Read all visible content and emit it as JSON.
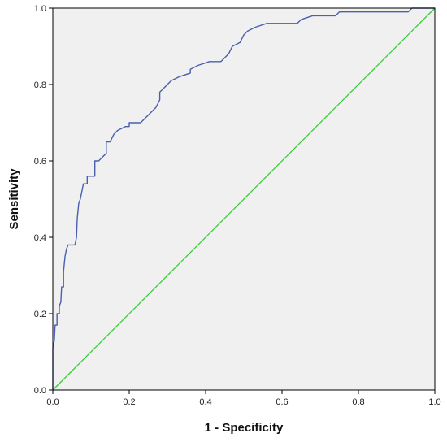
{
  "colors": {
    "plot_background": "#f0f0f0",
    "frame": "#000000",
    "roc_line": "#4a5fae",
    "reference_line": "#3ec63e"
  },
  "chart_data": {
    "type": "line",
    "title": "",
    "xlabel": "1 - Specificity",
    "ylabel": "Sensitivity",
    "xlim": [
      0,
      1
    ],
    "ylim": [
      0,
      1
    ],
    "x_ticks": [
      "0.0",
      "0.2",
      "0.4",
      "0.6",
      "0.8",
      "1.0"
    ],
    "y_ticks": [
      "0.0",
      "0.2",
      "0.4",
      "0.6",
      "0.8",
      "1.0"
    ],
    "grid": false,
    "legend": "none",
    "series": [
      {
        "key": "roc",
        "step": true,
        "points": [
          [
            0.0,
            0.0
          ],
          [
            0.0,
            0.11
          ],
          [
            0.004,
            0.13
          ],
          [
            0.006,
            0.17
          ],
          [
            0.011,
            0.17
          ],
          [
            0.011,
            0.2
          ],
          [
            0.017,
            0.2
          ],
          [
            0.017,
            0.22
          ],
          [
            0.021,
            0.23
          ],
          [
            0.023,
            0.27
          ],
          [
            0.028,
            0.27
          ],
          [
            0.028,
            0.31
          ],
          [
            0.032,
            0.35
          ],
          [
            0.036,
            0.37
          ],
          [
            0.04,
            0.38
          ],
          [
            0.058,
            0.38
          ],
          [
            0.062,
            0.4
          ],
          [
            0.064,
            0.45
          ],
          [
            0.068,
            0.49
          ],
          [
            0.072,
            0.5
          ],
          [
            0.076,
            0.52
          ],
          [
            0.08,
            0.54
          ],
          [
            0.09,
            0.54
          ],
          [
            0.09,
            0.56
          ],
          [
            0.11,
            0.56
          ],
          [
            0.11,
            0.6
          ],
          [
            0.12,
            0.6
          ],
          [
            0.13,
            0.61
          ],
          [
            0.14,
            0.62
          ],
          [
            0.14,
            0.65
          ],
          [
            0.15,
            0.65
          ],
          [
            0.16,
            0.67
          ],
          [
            0.17,
            0.68
          ],
          [
            0.19,
            0.69
          ],
          [
            0.2,
            0.69
          ],
          [
            0.2,
            0.7
          ],
          [
            0.23,
            0.7
          ],
          [
            0.24,
            0.71
          ],
          [
            0.25,
            0.72
          ],
          [
            0.26,
            0.73
          ],
          [
            0.27,
            0.74
          ],
          [
            0.28,
            0.76
          ],
          [
            0.28,
            0.78
          ],
          [
            0.29,
            0.79
          ],
          [
            0.3,
            0.8
          ],
          [
            0.31,
            0.81
          ],
          [
            0.33,
            0.82
          ],
          [
            0.36,
            0.83
          ],
          [
            0.36,
            0.84
          ],
          [
            0.38,
            0.85
          ],
          [
            0.41,
            0.86
          ],
          [
            0.44,
            0.86
          ],
          [
            0.45,
            0.87
          ],
          [
            0.46,
            0.88
          ],
          [
            0.47,
            0.9
          ],
          [
            0.49,
            0.91
          ],
          [
            0.5,
            0.93
          ],
          [
            0.51,
            0.94
          ],
          [
            0.53,
            0.95
          ],
          [
            0.56,
            0.96
          ],
          [
            0.64,
            0.96
          ],
          [
            0.65,
            0.97
          ],
          [
            0.68,
            0.98
          ],
          [
            0.74,
            0.98
          ],
          [
            0.75,
            0.99
          ],
          [
            0.93,
            0.99
          ],
          [
            0.94,
            1.0
          ],
          [
            1.0,
            1.0
          ]
        ]
      },
      {
        "key": "reference",
        "step": false,
        "points": [
          [
            0,
            0
          ],
          [
            1,
            1
          ]
        ]
      }
    ]
  }
}
